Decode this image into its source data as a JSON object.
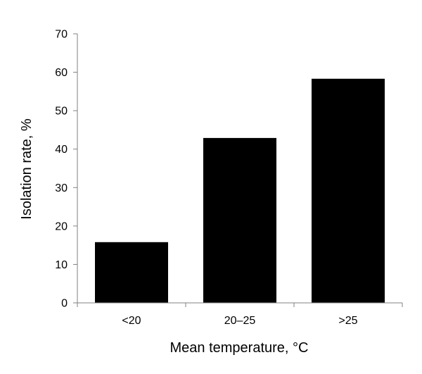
{
  "chart_data": {
    "type": "bar",
    "title": "",
    "xlabel": "Mean temperature, °C",
    "ylabel": "Isolation rate, %",
    "categories": [
      "<20",
      "20–25",
      ">25"
    ],
    "values": [
      15.8,
      42.9,
      58.3
    ],
    "ylim": [
      0,
      70
    ],
    "yticks": [
      "0",
      "10",
      "20",
      "30",
      "40",
      "50",
      "60",
      "70"
    ],
    "grid": false,
    "legend": "none",
    "colors": {
      "bar": "#000000",
      "axis": "#808080",
      "background": "#ffffff"
    }
  }
}
